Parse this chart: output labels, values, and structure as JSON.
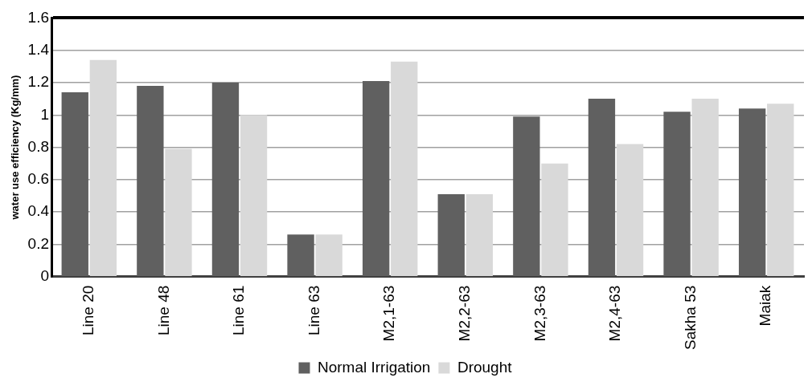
{
  "chart_data": {
    "type": "bar",
    "ylabel": "water use efficiency (Kg/mm)",
    "categories": [
      "Line 20",
      "Line 48",
      "Line 61",
      "Line 63",
      "M2,1-63",
      "M2,2-63",
      "M2,3-63",
      "M2,4-63",
      "Sakha 53",
      "Maiak"
    ],
    "series": [
      {
        "name": "Normal Irrigation",
        "color": "#606060",
        "values": [
          1.14,
          1.18,
          1.2,
          0.26,
          1.21,
          0.51,
          0.99,
          1.1,
          1.02,
          1.04
        ]
      },
      {
        "name": "Drought",
        "color": "#d9d9d9",
        "values": [
          1.34,
          0.79,
          1.0,
          0.26,
          1.33,
          0.51,
          0.7,
          0.82,
          1.1,
          1.07
        ]
      }
    ],
    "ylim": [
      0,
      1.6
    ],
    "yticks": [
      0,
      0.2,
      0.4,
      0.6,
      0.8,
      1,
      1.2,
      1.4,
      1.6
    ],
    "grid": "y",
    "legend": "bottom"
  }
}
